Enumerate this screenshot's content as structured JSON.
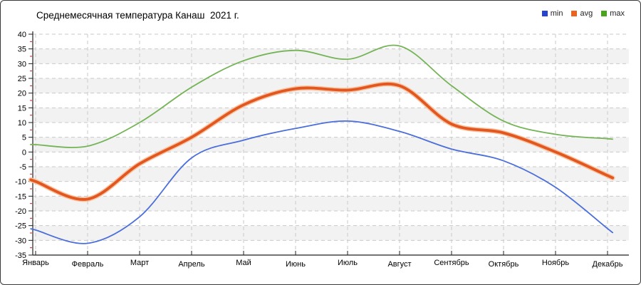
{
  "title": "Среднемесячная температура Канаш  2021 г.",
  "legend": [
    {
      "label": "min",
      "color": "#2644d4"
    },
    {
      "label": "avg",
      "color": "#e8641f"
    },
    {
      "label": "max",
      "color": "#4aa41e"
    }
  ],
  "chart_data": {
    "type": "line",
    "title": "Среднемесячная температура Канаш 2021 г.",
    "categories": [
      "Январь",
      "Февраль",
      "Март",
      "Апрель",
      "Май",
      "Июнь",
      "Июль",
      "Август",
      "Сентябрь",
      "Октябрь",
      "Ноябрь",
      "Декабрь"
    ],
    "series": [
      {
        "name": "min",
        "color": "#4a6edb",
        "width": 1.8,
        "values": [
          -26.5,
          -31,
          -22,
          -2,
          4,
          8,
          10.5,
          7,
          1,
          -3,
          -12,
          -26
        ]
      },
      {
        "name": "avg",
        "color": "#e2571f",
        "halo": "#f6c3a0",
        "width": 3.8,
        "values": [
          -10,
          -16,
          -4,
          5,
          16,
          21.5,
          21,
          22.5,
          9.5,
          6.5,
          0,
          -8
        ]
      },
      {
        "name": "max",
        "color": "#74b456",
        "width": 1.8,
        "values": [
          2.5,
          2,
          10,
          22,
          31,
          34.5,
          31.5,
          36,
          22.5,
          10.5,
          6,
          4.5
        ]
      }
    ],
    "ylim": [
      -35,
      40
    ],
    "ytick_step": 5,
    "yminor_step": 2.5,
    "grid": "dashed",
    "band_fill": "#f2f2f2",
    "grid_color": "#c9c9c9",
    "axis_color": "#222222",
    "minor_tick_color": "#cc2222",
    "legend_position": "top-right",
    "xlabel": "",
    "ylabel": ""
  }
}
